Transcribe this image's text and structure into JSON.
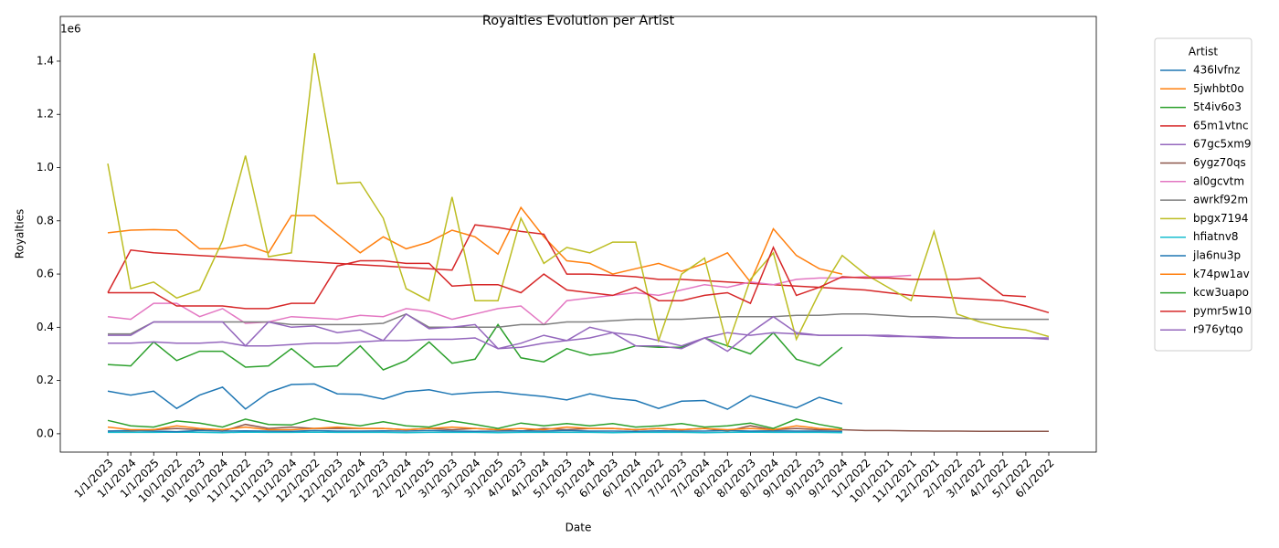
{
  "chart_data": {
    "type": "line",
    "title": "Royalties Evolution per Artist",
    "x_label": "Date",
    "y_label": "Royalties",
    "y_scale_label": "1e6",
    "legend_title": "Artist",
    "legend": "outside upper right",
    "categories": [
      "1/1/2023",
      "1/1/2024",
      "1/1/2025",
      "10/1/2022",
      "10/1/2023",
      "10/1/2024",
      "11/1/2022",
      "11/1/2023",
      "11/1/2024",
      "12/1/2022",
      "12/1/2023",
      "12/1/2024",
      "2/1/2023",
      "2/1/2024",
      "2/1/2025",
      "3/1/2023",
      "3/1/2024",
      "3/1/2025",
      "4/1/2023",
      "4/1/2024",
      "5/1/2023",
      "5/1/2024",
      "6/1/2023",
      "6/1/2024",
      "7/1/2022",
      "7/1/2023",
      "7/1/2024",
      "8/1/2022",
      "8/1/2023",
      "8/1/2024",
      "9/1/2022",
      "9/1/2023",
      "9/1/2024",
      "1/1/2022",
      "10/1/2021",
      "11/1/2021",
      "12/1/2021",
      "2/1/2022",
      "3/1/2022",
      "4/1/2022",
      "5/1/2022",
      "6/1/2022"
    ],
    "ylim": [
      -0.069,
      1.568
    ],
    "yticks": [
      {
        "value": 0,
        "label": "0.0"
      },
      0.2,
      0.4,
      0.6,
      0.8,
      {
        "value": 1,
        "label": "1.0"
      },
      1.2,
      1.4
    ],
    "series": [
      {
        "name": "436lvfnz",
        "color": "#1f77b4",
        "values": [
          0.16,
          0.145,
          0.16,
          0.095,
          0.145,
          0.175,
          0.093,
          0.155,
          0.185,
          0.187,
          0.15,
          0.148,
          0.13,
          0.158,
          0.165,
          0.148,
          0.155,
          0.158,
          0.148,
          0.14,
          0.127,
          0.15,
          0.133,
          0.125,
          0.095,
          0.122,
          0.125,
          0.092,
          0.143,
          0.12,
          0.097,
          0.137,
          0.113,
          null,
          null,
          null,
          null,
          null,
          null,
          null,
          null,
          null
        ]
      },
      {
        "name": "5jwhbt0o",
        "color": "#ff7f0e",
        "values": [
          0.755,
          0.765,
          0.767,
          0.765,
          0.695,
          0.695,
          0.71,
          0.68,
          0.82,
          0.82,
          0.75,
          0.68,
          0.74,
          0.695,
          0.72,
          0.765,
          0.74,
          0.675,
          0.85,
          0.74,
          0.65,
          0.64,
          0.6,
          0.62,
          0.64,
          0.61,
          0.64,
          0.68,
          0.57,
          0.77,
          0.67,
          0.62,
          0.6,
          null,
          null,
          null,
          null,
          null,
          null,
          null,
          null,
          null
        ]
      },
      {
        "name": "5t4iv6o3",
        "color": "#2ca02c",
        "values": [
          0.26,
          0.255,
          0.345,
          0.275,
          0.31,
          0.31,
          0.25,
          0.255,
          0.32,
          0.25,
          0.255,
          0.33,
          0.24,
          0.275,
          0.345,
          0.265,
          0.28,
          0.41,
          0.285,
          0.27,
          0.32,
          0.295,
          0.305,
          0.33,
          0.325,
          0.325,
          0.36,
          0.33,
          0.3,
          0.38,
          0.28,
          0.255,
          0.325,
          null,
          null,
          null,
          null,
          null,
          null,
          null,
          null,
          null
        ]
      },
      {
        "name": "65m1vtnc",
        "color": "#d62728",
        "values": [
          0.53,
          0.69,
          0.68,
          0.675,
          0.67,
          0.665,
          0.66,
          0.655,
          0.65,
          0.645,
          0.64,
          0.635,
          0.63,
          0.625,
          0.62,
          0.615,
          0.785,
          0.775,
          0.76,
          0.75,
          0.6,
          0.6,
          0.595,
          0.59,
          0.58,
          0.58,
          0.575,
          0.57,
          0.565,
          0.56,
          0.555,
          0.55,
          0.545,
          0.54,
          0.53,
          0.52,
          0.515,
          0.51,
          0.505,
          0.5,
          0.48,
          0.455
        ]
      },
      {
        "name": "67gc5xm9",
        "color": "#9467bd",
        "values": [
          0.34,
          0.34,
          0.345,
          0.34,
          0.34,
          0.345,
          0.33,
          0.33,
          0.335,
          0.34,
          0.34,
          0.345,
          0.35,
          0.35,
          0.355,
          0.355,
          0.36,
          0.32,
          0.325,
          0.34,
          0.35,
          0.36,
          0.38,
          0.37,
          0.35,
          0.33,
          0.36,
          0.38,
          0.37,
          0.38,
          0.375,
          0.37,
          0.37,
          0.37,
          0.365,
          0.365,
          0.36,
          0.36,
          0.36,
          0.36,
          0.36,
          0.36
        ]
      },
      {
        "name": "6ygz70qs",
        "color": "#8c564b",
        "values": [
          0.01,
          0.01,
          0.015,
          0.02,
          0.015,
          0.01,
          0.035,
          0.02,
          0.025,
          0.02,
          0.02,
          0.02,
          0.02,
          0.015,
          0.02,
          0.015,
          0.02,
          0.015,
          0.01,
          0.02,
          0.015,
          0.02,
          0.02,
          0.015,
          0.02,
          0.015,
          0.02,
          0.01,
          0.03,
          0.015,
          0.02,
          0.015,
          0.015,
          0.012,
          0.012,
          0.011,
          0.01,
          0.01,
          0.009,
          0.009,
          0.009,
          0.009
        ]
      },
      {
        "name": "al0gcvtm",
        "color": "#e377c2",
        "values": [
          0.44,
          0.43,
          0.49,
          0.49,
          0.44,
          0.47,
          0.415,
          0.42,
          0.44,
          0.435,
          0.43,
          0.445,
          0.44,
          0.47,
          0.46,
          0.43,
          0.45,
          0.47,
          0.48,
          0.41,
          0.5,
          0.51,
          0.52,
          0.53,
          0.52,
          0.54,
          0.56,
          0.55,
          0.57,
          0.56,
          0.58,
          0.585,
          0.585,
          0.59,
          0.59,
          0.595,
          null,
          null,
          null,
          null,
          null,
          null
        ]
      },
      {
        "name": "awrkf92m",
        "color": "#7f7f7f",
        "values": [
          0.375,
          0.375,
          0.42,
          0.42,
          0.42,
          0.42,
          0.42,
          0.42,
          0.41,
          0.41,
          0.41,
          0.41,
          0.415,
          0.45,
          0.4,
          0.4,
          0.4,
          0.4,
          0.41,
          0.41,
          0.42,
          0.42,
          0.425,
          0.43,
          0.43,
          0.43,
          0.435,
          0.44,
          0.44,
          0.44,
          0.445,
          0.445,
          0.45,
          0.45,
          0.445,
          0.44,
          0.44,
          0.435,
          0.43,
          0.43,
          0.43,
          0.43
        ]
      },
      {
        "name": "bpgx7194",
        "color": "#bcbd22",
        "values": [
          1.015,
          0.545,
          0.57,
          0.51,
          0.54,
          0.725,
          1.045,
          0.665,
          0.68,
          1.43,
          0.94,
          0.945,
          0.81,
          0.545,
          0.5,
          0.89,
          0.5,
          0.5,
          0.81,
          0.64,
          0.7,
          0.68,
          0.72,
          0.72,
          0.35,
          0.6,
          0.66,
          0.33,
          0.58,
          0.68,
          0.355,
          0.53,
          0.67,
          0.6,
          0.55,
          0.5,
          0.76,
          0.45,
          0.42,
          0.4,
          0.39,
          0.365
        ]
      },
      {
        "name": "hfiatnv8",
        "color": "#17becf",
        "values": [
          0.005,
          0.005,
          0.005,
          0.006,
          0.005,
          0.004,
          0.006,
          0.005,
          0.005,
          0.006,
          0.005,
          0.005,
          0.005,
          0.004,
          0.005,
          0.005,
          0.005,
          0.004,
          0.005,
          0.005,
          0.005,
          0.005,
          0.004,
          0.005,
          0.005,
          0.005,
          0.004,
          0.005,
          0.006,
          0.005,
          0.005,
          0.005,
          0.004,
          null,
          null,
          null,
          null,
          null,
          null,
          null,
          null,
          null
        ]
      },
      {
        "name": "jla6nu3p",
        "color": "#1f77b4",
        "values": [
          0.01,
          0.012,
          0.01,
          0.008,
          0.012,
          0.01,
          0.011,
          0.01,
          0.009,
          0.012,
          0.01,
          0.01,
          0.011,
          0.01,
          0.012,
          0.01,
          0.009,
          0.01,
          0.011,
          0.01,
          0.012,
          0.01,
          0.01,
          0.009,
          0.011,
          0.01,
          0.01,
          0.012,
          0.01,
          0.011,
          0.01,
          0.01,
          0.009,
          null,
          null,
          null,
          null,
          null,
          null,
          null,
          null,
          null
        ]
      },
      {
        "name": "k74pw1av",
        "color": "#ff7f0e",
        "values": [
          0.025,
          0.015,
          0.015,
          0.03,
          0.02,
          0.015,
          0.025,
          0.015,
          0.015,
          0.02,
          0.025,
          0.02,
          0.02,
          0.015,
          0.02,
          0.025,
          0.02,
          0.015,
          0.02,
          0.015,
          0.025,
          0.02,
          0.02,
          0.015,
          0.02,
          0.015,
          0.02,
          0.015,
          0.02,
          0.015,
          0.03,
          0.02,
          0.015,
          null,
          null,
          null,
          null,
          null,
          null,
          null,
          null,
          null
        ]
      },
      {
        "name": "kcw3uapo",
        "color": "#2ca02c",
        "values": [
          0.05,
          0.03,
          0.025,
          0.048,
          0.04,
          0.025,
          0.055,
          0.035,
          0.033,
          0.057,
          0.04,
          0.03,
          0.045,
          0.03,
          0.025,
          0.048,
          0.035,
          0.02,
          0.04,
          0.03,
          0.038,
          0.03,
          0.038,
          0.025,
          0.03,
          0.038,
          0.025,
          0.03,
          0.04,
          0.02,
          0.055,
          0.035,
          0.02,
          null,
          null,
          null,
          null,
          null,
          null,
          null,
          null,
          null
        ]
      },
      {
        "name": "pymr5w10",
        "color": "#d62728",
        "values": [
          0.53,
          0.53,
          0.53,
          0.48,
          0.48,
          0.48,
          0.47,
          0.47,
          0.49,
          0.49,
          0.63,
          0.65,
          0.65,
          0.64,
          0.64,
          0.555,
          0.56,
          0.56,
          0.53,
          0.6,
          0.54,
          0.53,
          0.52,
          0.55,
          0.5,
          0.5,
          0.52,
          0.53,
          0.49,
          0.7,
          0.52,
          0.55,
          0.59,
          0.585,
          0.585,
          0.58,
          0.58,
          0.58,
          0.585,
          0.52,
          0.515,
          null
        ]
      },
      {
        "name": "r976ytqo",
        "color": "#9467bd",
        "values": [
          0.37,
          0.37,
          0.42,
          0.42,
          0.42,
          0.42,
          0.33,
          0.42,
          0.4,
          0.405,
          0.38,
          0.39,
          0.35,
          0.45,
          0.395,
          0.4,
          0.41,
          0.32,
          0.34,
          0.37,
          0.35,
          0.4,
          0.38,
          0.33,
          0.33,
          0.32,
          0.36,
          0.31,
          0.38,
          0.44,
          0.38,
          0.37,
          0.37,
          0.37,
          0.37,
          0.365,
          0.365,
          0.36,
          0.36,
          0.36,
          0.36,
          0.355
        ]
      }
    ]
  }
}
